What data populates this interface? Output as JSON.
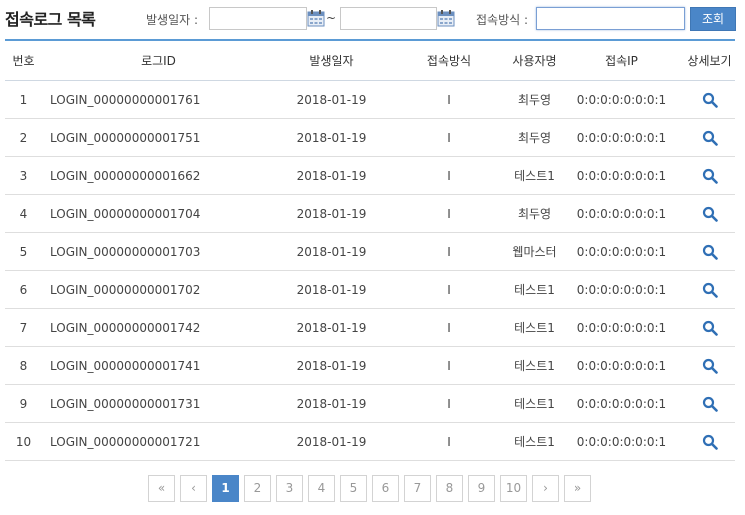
{
  "header": {
    "title": "접속로그 목록",
    "date_label": "발생일자 :",
    "date_from": "",
    "date_to": "",
    "tilde": "~",
    "method_label": "접속방식 :",
    "method_value": "",
    "search_button": "조회"
  },
  "table": {
    "columns": [
      "번호",
      "로그ID",
      "발생일자",
      "접속방식",
      "사용자명",
      "접속IP",
      "상세보기"
    ],
    "rows": [
      {
        "no": "1",
        "id": "LOGIN_00000000001761",
        "date": "2018-01-19",
        "method": "I",
        "user": "최두영",
        "ip": "0:0:0:0:0:0:0:1"
      },
      {
        "no": "2",
        "id": "LOGIN_00000000001751",
        "date": "2018-01-19",
        "method": "I",
        "user": "최두영",
        "ip": "0:0:0:0:0:0:0:1"
      },
      {
        "no": "3",
        "id": "LOGIN_00000000001662",
        "date": "2018-01-19",
        "method": "I",
        "user": "테스트1",
        "ip": "0:0:0:0:0:0:0:1"
      },
      {
        "no": "4",
        "id": "LOGIN_00000000001704",
        "date": "2018-01-19",
        "method": "I",
        "user": "최두영",
        "ip": "0:0:0:0:0:0:0:1"
      },
      {
        "no": "5",
        "id": "LOGIN_00000000001703",
        "date": "2018-01-19",
        "method": "I",
        "user": "웹마스터",
        "ip": "0:0:0:0:0:0:0:1"
      },
      {
        "no": "6",
        "id": "LOGIN_00000000001702",
        "date": "2018-01-19",
        "method": "I",
        "user": "테스트1",
        "ip": "0:0:0:0:0:0:0:1"
      },
      {
        "no": "7",
        "id": "LOGIN_00000000001742",
        "date": "2018-01-19",
        "method": "I",
        "user": "테스트1",
        "ip": "0:0:0:0:0:0:0:1"
      },
      {
        "no": "8",
        "id": "LOGIN_00000000001741",
        "date": "2018-01-19",
        "method": "I",
        "user": "테스트1",
        "ip": "0:0:0:0:0:0:0:1"
      },
      {
        "no": "9",
        "id": "LOGIN_00000000001731",
        "date": "2018-01-19",
        "method": "I",
        "user": "테스트1",
        "ip": "0:0:0:0:0:0:0:1"
      },
      {
        "no": "10",
        "id": "LOGIN_00000000001721",
        "date": "2018-01-19",
        "method": "I",
        "user": "테스트1",
        "ip": "0:0:0:0:0:0:0:1"
      }
    ],
    "detail_icon": "magnifier-icon"
  },
  "pagination": {
    "first": "«",
    "prev": "‹",
    "pages": [
      "1",
      "2",
      "3",
      "4",
      "5",
      "6",
      "7",
      "8",
      "9",
      "10"
    ],
    "current": "1",
    "next": "›",
    "last": "»"
  },
  "colors": {
    "accent": "#4a86c8",
    "header_border": "#5b9bd5",
    "icon": "#2f6fb5"
  }
}
